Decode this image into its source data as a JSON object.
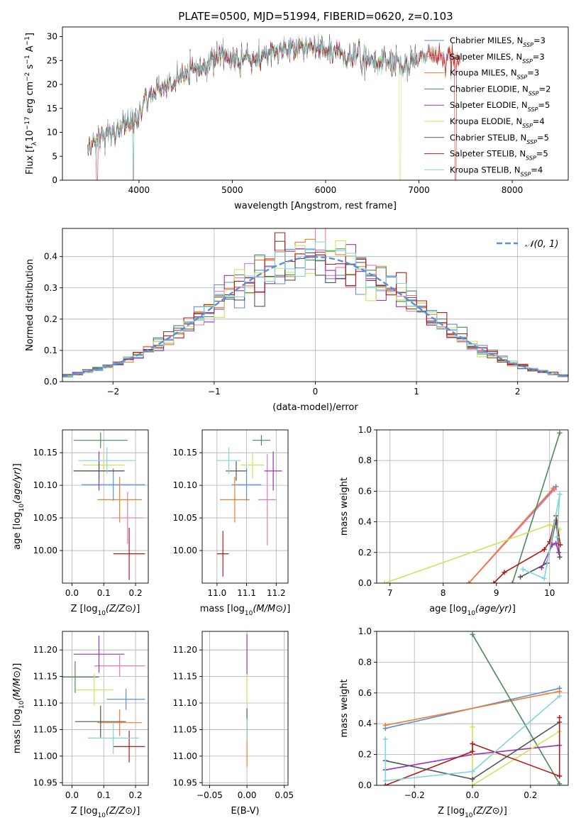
{
  "figure": {
    "title": "PLATE=0500, MJD=51994, FIBERID=0620, z=0.103"
  },
  "chart_data": [
    {
      "id": "spectrum",
      "type": "line",
      "xlabel": "wavelength [Angstrom, rest frame]",
      "ylabel": "Flux [f_λ10^-17 erg cm^-2 s^-1 A^-1]",
      "xlim": [
        3180,
        8600
      ],
      "ylim": [
        0,
        32
      ],
      "xticks": [
        4000,
        5000,
        6000,
        7000,
        8000
      ],
      "yticks": [
        0,
        5,
        10,
        15,
        20,
        25,
        30
      ],
      "legend_position": "top-right",
      "series": [
        {
          "name": "Chabrier MILES, N_SSP=3",
          "color": "#5b8fd6"
        },
        {
          "name": "Salpeter MILES, N_SSP=3",
          "color": "#e377c2"
        },
        {
          "name": "Kroupa MILES, N_SSP=3",
          "color": "#f07d2b"
        },
        {
          "name": "Chabrier ELODIE, N_SSP=2",
          "color": "#4d8a5a"
        },
        {
          "name": "Salpeter ELODIE, N_SSP=5",
          "color": "#9932b8"
        },
        {
          "name": "Kroupa ELODIE, N_SSP=4",
          "color": "#d4e157"
        },
        {
          "name": "Chabrier STELIB, N_SSP=5",
          "color": "#555555"
        },
        {
          "name": "Salpeter STELIB, N_SSP=5",
          "color": "#b31b1b"
        },
        {
          "name": "Kroupa STELIB, N_SSP=4",
          "color": "#7fd6dc"
        }
      ],
      "envelope": {
        "x": [
          3450,
          3550,
          3650,
          3750,
          3850,
          3950,
          4050,
          4150,
          4300,
          4450,
          4600,
          4750,
          4900,
          5050,
          5200,
          5350,
          5500,
          5650,
          5800,
          5950,
          6100,
          6250,
          6400,
          6550,
          6700,
          6850,
          7000,
          7150,
          7300,
          7450
        ],
        "y": [
          6.5,
          8,
          9.5,
          10,
          11,
          12.5,
          15.5,
          18.5,
          20,
          21.5,
          23.5,
          24.5,
          26,
          25.5,
          25,
          26,
          27,
          27.5,
          28,
          27.5,
          27,
          26,
          25.5,
          24.5,
          25,
          24,
          25.5,
          26.5,
          25.5,
          24.5
        ]
      }
    },
    {
      "id": "residuals",
      "type": "line",
      "xlabel": "(data-model)/error",
      "ylabel": "Normed distribution",
      "xlim": [
        -2.5,
        2.5
      ],
      "ylim": [
        0,
        0.49
      ],
      "xticks": [
        -2,
        -1,
        0,
        1,
        2
      ],
      "yticks": [
        0.0,
        0.1,
        0.2,
        0.3,
        0.4
      ],
      "legend_position": "top-right",
      "gaussian_label": "𝒩(0, 1)",
      "gaussian_color": "#5b8fd6"
    },
    {
      "id": "age-vs-Z",
      "type": "scatter",
      "xlabel": "Z [log10(Z/Z⊙)]",
      "ylabel": "age  [log10(age/yr)]",
      "xlim": [
        -0.03,
        0.24
      ],
      "ylim": [
        9.95,
        10.185
      ],
      "xticks": [
        0.0,
        0.1,
        0.2
      ],
      "yticks": [
        10.0,
        10.05,
        10.1,
        10.15
      ],
      "points": [
        {
          "x": 0.13,
          "xerr": 0.1,
          "y": 10.101,
          "yerr": 0.025,
          "color": "#5b8fd6"
        },
        {
          "x": 0.175,
          "xerr": 0.05,
          "y": 10.05,
          "yerr": 0.04,
          "color": "#e377c2"
        },
        {
          "x": 0.15,
          "xerr": 0.07,
          "y": 10.078,
          "yerr": 0.035,
          "color": "#f07d2b"
        },
        {
          "x": 0.09,
          "xerr": 0.085,
          "y": 10.169,
          "yerr": 0.012,
          "color": "#4d8a5a"
        },
        {
          "x": 0.085,
          "xerr": 0.08,
          "y": 10.122,
          "yerr": 0.03,
          "color": "#9932b8"
        },
        {
          "x": 0.1,
          "xerr": 0.065,
          "y": 10.131,
          "yerr": 0.02,
          "color": "#d4e157"
        },
        {
          "x": 0.085,
          "xerr": 0.08,
          "y": 10.122,
          "yerr": 0.015,
          "color": "#555555"
        },
        {
          "x": 0.18,
          "xerr": 0.05,
          "y": 9.995,
          "yerr": 0.04,
          "color": "#b31b1b"
        },
        {
          "x": 0.11,
          "xerr": 0.09,
          "y": 10.138,
          "yerr": 0.02,
          "color": "#7fd6dc"
        }
      ]
    },
    {
      "id": "age-vs-mass",
      "type": "scatter",
      "xlabel": "mass [log10(M/M⊙)]",
      "ylabel": "",
      "xlim": [
        10.95,
        11.24
      ],
      "ylim": [
        9.95,
        10.185
      ],
      "xticks": [
        11.0,
        11.1,
        11.2
      ],
      "yticks": [
        10.0,
        10.05,
        10.1,
        10.15
      ],
      "points": [
        {
          "x": 11.1,
          "xerr": 0.05,
          "y": 10.101,
          "yerr": 0.025,
          "color": "#5b8fd6"
        },
        {
          "x": 11.17,
          "xerr": 0.03,
          "y": 10.078,
          "yerr": 0.07,
          "color": "#e377c2"
        },
        {
          "x": 11.06,
          "xerr": 0.05,
          "y": 10.078,
          "yerr": 0.035,
          "color": "#f07d2b"
        },
        {
          "x": 11.15,
          "xerr": 0.03,
          "y": 10.169,
          "yerr": 0.008,
          "color": "#4d8a5a"
        },
        {
          "x": 11.19,
          "xerr": 0.03,
          "y": 10.122,
          "yerr": 0.03,
          "color": "#9932b8"
        },
        {
          "x": 11.12,
          "xerr": 0.04,
          "y": 10.131,
          "yerr": 0.02,
          "color": "#d4e157"
        },
        {
          "x": 11.065,
          "xerr": 0.035,
          "y": 10.122,
          "yerr": 0.015,
          "color": "#555555"
        },
        {
          "x": 11.02,
          "xerr": 0.02,
          "y": 9.995,
          "yerr": 0.035,
          "color": "#b31b1b"
        },
        {
          "x": 11.04,
          "xerr": 0.04,
          "y": 10.138,
          "yerr": 0.02,
          "color": "#7fd6dc"
        }
      ]
    },
    {
      "id": "weight-vs-age",
      "type": "line",
      "xlabel": "age  [log10(age/yr)]",
      "ylabel": "mass weight",
      "xlim": [
        6.75,
        10.35
      ],
      "ylim": [
        0,
        1
      ],
      "xticks": [
        7,
        8,
        9,
        10
      ],
      "yticks": [
        0.0,
        0.2,
        0.4,
        0.6,
        0.8,
        1.0
      ],
      "series": [
        {
          "color": "#5b8fd6",
          "x": [
            8.48,
            10.12
          ],
          "y": [
            0.0,
            0.63
          ]
        },
        {
          "color": "#e377c2",
          "x": [
            8.48,
            10.09
          ],
          "y": [
            0.0,
            0.61
          ]
        },
        {
          "color": "#f07d2b",
          "x": [
            8.48,
            10.07
          ],
          "y": [
            0.0,
            0.62
          ]
        },
        {
          "color": "#4d8a5a",
          "x": [
            9.3,
            10.19
          ],
          "y": [
            0.0,
            0.98
          ]
        },
        {
          "color": "#9932b8",
          "x": [
            9.85,
            10.05,
            10.12,
            10.17
          ],
          "y": [
            0.1,
            0.25,
            0.26,
            0.2
          ]
        },
        {
          "color": "#d4e157",
          "x": [
            6.9,
            10.0,
            10.19
          ],
          "y": [
            0.0,
            0.38,
            0.35
          ]
        },
        {
          "color": "#555555",
          "x": [
            9.45,
            9.95,
            10.12,
            10.19
          ],
          "y": [
            0.04,
            0.13,
            0.41,
            0.17
          ]
        },
        {
          "color": "#b31b1b",
          "x": [
            8.95,
            9.15,
            9.9,
            10.0,
            10.12,
            10.2
          ],
          "y": [
            0.0,
            0.07,
            0.22,
            0.27,
            0.44,
            0.25
          ]
        },
        {
          "color": "#7fd6dc",
          "x": [
            9.5,
            9.9,
            10.19,
            10.14
          ],
          "y": [
            0.09,
            0.03,
            0.58,
            0.3
          ]
        }
      ]
    },
    {
      "id": "mass-vs-Z",
      "type": "scatter",
      "xlabel": "Z [log10(Z/Z⊙)]",
      "ylabel": "mass [log10(M/M⊙)]",
      "xlim": [
        -0.03,
        0.24
      ],
      "ylim": [
        10.945,
        11.235
      ],
      "xticks": [
        0.0,
        0.1,
        0.2
      ],
      "yticks": [
        10.95,
        11.0,
        11.05,
        11.1,
        11.15,
        11.2
      ],
      "points": [
        {
          "x": 0.17,
          "xerr": 0.06,
          "y": 11.107,
          "yerr": 0.02,
          "color": "#5b8fd6"
        },
        {
          "x": 0.15,
          "xerr": 0.08,
          "y": 11.17,
          "yerr": 0.02,
          "color": "#e377c2"
        },
        {
          "x": 0.15,
          "xerr": 0.07,
          "y": 11.063,
          "yerr": 0.025,
          "color": "#f07d2b"
        },
        {
          "x": 0.01,
          "xerr": 0.075,
          "y": 11.149,
          "yerr": 0.03,
          "color": "#4d8a5a"
        },
        {
          "x": 0.085,
          "xerr": 0.08,
          "y": 11.192,
          "yerr": 0.035,
          "color": "#9932b8"
        },
        {
          "x": 0.07,
          "xerr": 0.06,
          "y": 11.125,
          "yerr": 0.03,
          "color": "#d4e157"
        },
        {
          "x": 0.09,
          "xerr": 0.08,
          "y": 11.065,
          "yerr": 0.03,
          "color": "#555555"
        },
        {
          "x": 0.18,
          "xerr": 0.05,
          "y": 11.018,
          "yerr": 0.03,
          "color": "#b31b1b"
        },
        {
          "x": 0.13,
          "xerr": 0.08,
          "y": 11.034,
          "yerr": 0.03,
          "color": "#7fd6dc"
        }
      ]
    },
    {
      "id": "mass-vs-ebv",
      "type": "scatter",
      "xlabel": "E(B-V)",
      "ylabel": "",
      "xlim": [
        -0.06,
        0.055
      ],
      "ylim": [
        10.945,
        11.235
      ],
      "xticks": [
        -0.05,
        0.0,
        0.05
      ],
      "yticks": [
        10.95,
        11.0,
        11.05,
        11.1,
        11.15,
        11.2
      ],
      "points": [
        {
          "x": 0.0,
          "xerr": 0.0,
          "y": 11.19,
          "yerr": 0.04,
          "color": "#9932b8"
        },
        {
          "x": 0.0,
          "xerr": 0.0,
          "y": 11.125,
          "yerr": 0.03,
          "color": "#d4e157"
        },
        {
          "x": 0.0,
          "xerr": 0.0,
          "y": 11.06,
          "yerr": 0.03,
          "color": "#555555"
        },
        {
          "x": 0.0,
          "xerr": 0.0,
          "y": 11.01,
          "yerr": 0.03,
          "color": "#f07d2b"
        },
        {
          "x": 0.0,
          "xerr": 0.0,
          "y": 11.05,
          "yerr": 0.02,
          "color": "#7fd6dc"
        }
      ]
    },
    {
      "id": "weight-vs-Z",
      "type": "line",
      "xlabel": "Z [log10(Z/Z⊙)]",
      "ylabel": "mass weight",
      "xlim": [
        -0.33,
        0.33
      ],
      "ylim": [
        0,
        1
      ],
      "xticks": [
        -0.2,
        0.0,
        0.2
      ],
      "yticks": [
        0.0,
        0.2,
        0.4,
        0.6,
        0.8,
        1.0
      ],
      "series": [
        {
          "color": "#5b8fd6",
          "x": [
            -0.3,
            0.3
          ],
          "y": [
            0.37,
            0.63
          ]
        },
        {
          "color": "#f07d2b",
          "x": [
            -0.3,
            0.3
          ],
          "y": [
            0.39,
            0.61
          ]
        },
        {
          "color": "#4d8a5a",
          "x": [
            0.0,
            0.3
          ],
          "y": [
            0.98,
            0.01
          ]
        },
        {
          "color": "#9932b8",
          "x": [
            -0.3,
            0.0,
            0.3
          ],
          "y": [
            0.1,
            0.2,
            0.26
          ]
        },
        {
          "color": "#d4e157",
          "x": [
            0.0,
            0.0,
            0.3
          ],
          "y": [
            0.38,
            0.0,
            0.35
          ]
        },
        {
          "color": "#555555",
          "x": [
            -0.3,
            0.0,
            0.3
          ],
          "y": [
            0.16,
            0.04,
            0.41
          ]
        },
        {
          "color": "#b31b1b",
          "x": [
            -0.3,
            0.0,
            0.0,
            0.3,
            0.3
          ],
          "y": [
            0.0,
            0.22,
            0.27,
            0.06,
            0.44
          ]
        },
        {
          "color": "#7fd6dc",
          "x": [
            -0.3,
            -0.3,
            0.0,
            0.3
          ],
          "y": [
            0.3,
            0.03,
            0.09,
            0.58
          ]
        }
      ]
    }
  ]
}
